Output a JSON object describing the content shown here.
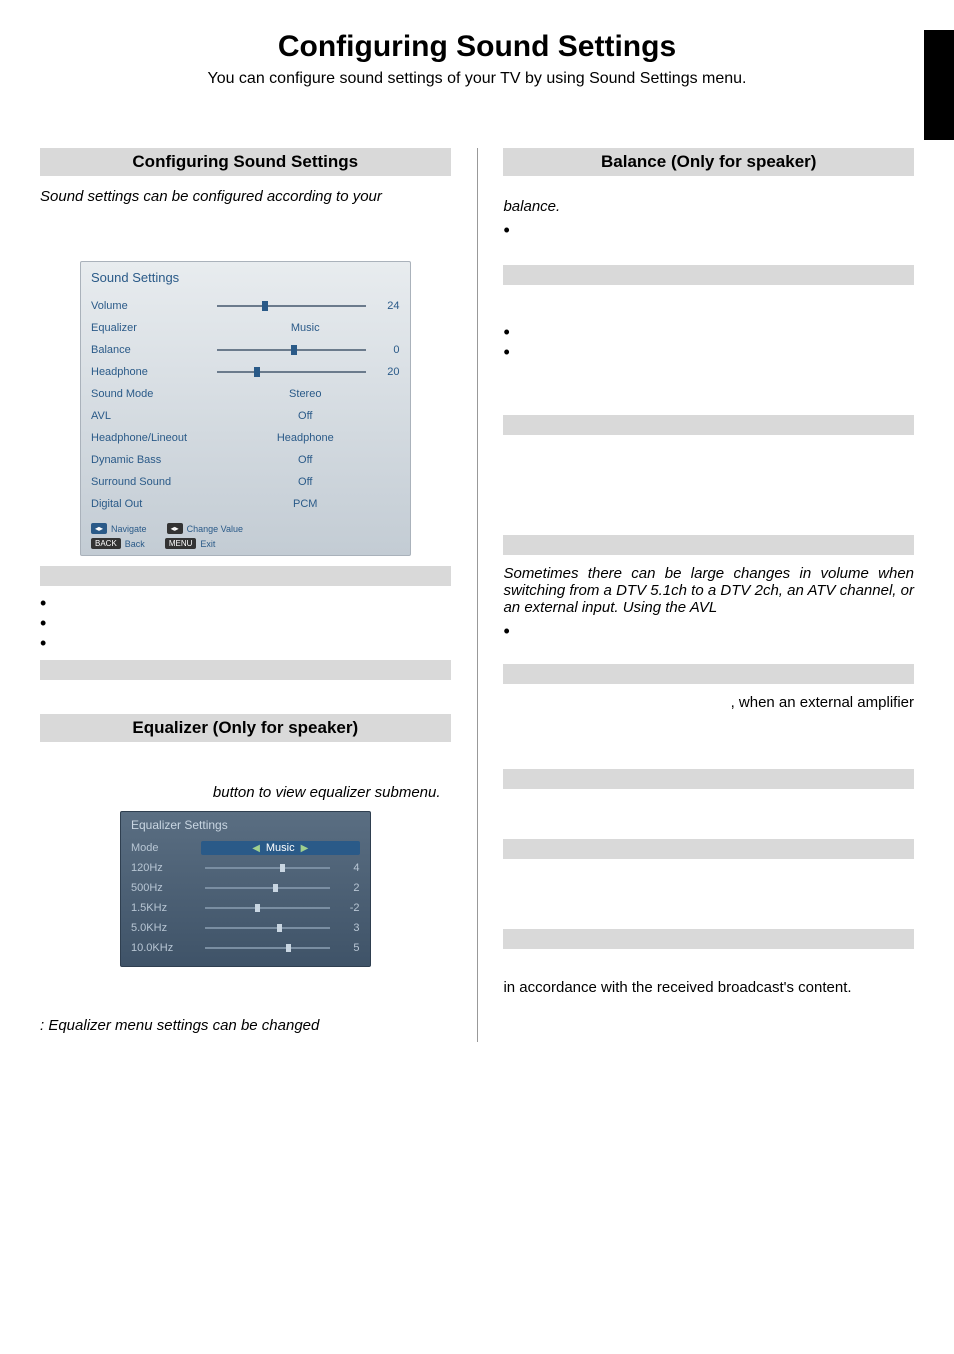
{
  "page": {
    "title": "Configuring Sound Settings",
    "subtitle": "You can configure sound settings of your TV by using Sound Settings menu."
  },
  "left": {
    "heading1": "Configuring Sound Settings",
    "intro_italic": "Sound settings can be configured according to your",
    "heading2": "Equalizer (Only for speaker)",
    "eq_hint_italic": "button to view equalizer submenu.",
    "note_italic": ": Equalizer menu settings can be changed"
  },
  "right": {
    "heading1": "Balance (Only for speaker)",
    "balance_italic": "balance.",
    "avl_italic": "Sometimes there can be large changes in volume when switching from a DTV 5.1ch to a DTV 2ch, an ATV channel, or an external input. Using the AVL",
    "amp_text": ", when an external amplifier",
    "broadcast_text": "in accordance with the received broadcast's content."
  },
  "sound_panel": {
    "title": "Sound Settings",
    "rows": [
      {
        "label": "Volume",
        "type": "slider",
        "value": 24,
        "thumb_pct": 30
      },
      {
        "label": "Equalizer",
        "type": "center",
        "value": "Music"
      },
      {
        "label": "Balance",
        "type": "slider",
        "value": 0,
        "thumb_pct": 50
      },
      {
        "label": "Headphone",
        "type": "slider",
        "value": 20,
        "thumb_pct": 25
      },
      {
        "label": "Sound Mode",
        "type": "center",
        "value": "Stereo"
      },
      {
        "label": "AVL",
        "type": "center",
        "value": "Off"
      },
      {
        "label": "Headphone/Lineout",
        "type": "center",
        "value": "Headphone"
      },
      {
        "label": "Dynamic Bass",
        "type": "center",
        "value": "Off"
      },
      {
        "label": "Surround Sound",
        "type": "center",
        "value": "Off"
      },
      {
        "label": "Digital Out",
        "type": "center",
        "value": "PCM"
      }
    ],
    "footer": {
      "navigate": "Navigate",
      "change": "Change Value",
      "back": "Back",
      "exit": "Exit"
    }
  },
  "eq_panel": {
    "title": "Equalizer Settings",
    "mode_label": "Mode",
    "mode_value": "Music",
    "bands": [
      {
        "label": "120Hz",
        "value": 4,
        "thumb_pct": 60
      },
      {
        "label": "500Hz",
        "value": 2,
        "thumb_pct": 55
      },
      {
        "label": "1.5KHz",
        "value": -2,
        "thumb_pct": 40
      },
      {
        "label": "5.0KHz",
        "value": 3,
        "thumb_pct": 58
      },
      {
        "label": "10.0KHz",
        "value": 5,
        "thumb_pct": 65
      }
    ]
  },
  "colors": {
    "grey_bar": "#d9d9d9",
    "panel_text": "#2a5a88"
  }
}
